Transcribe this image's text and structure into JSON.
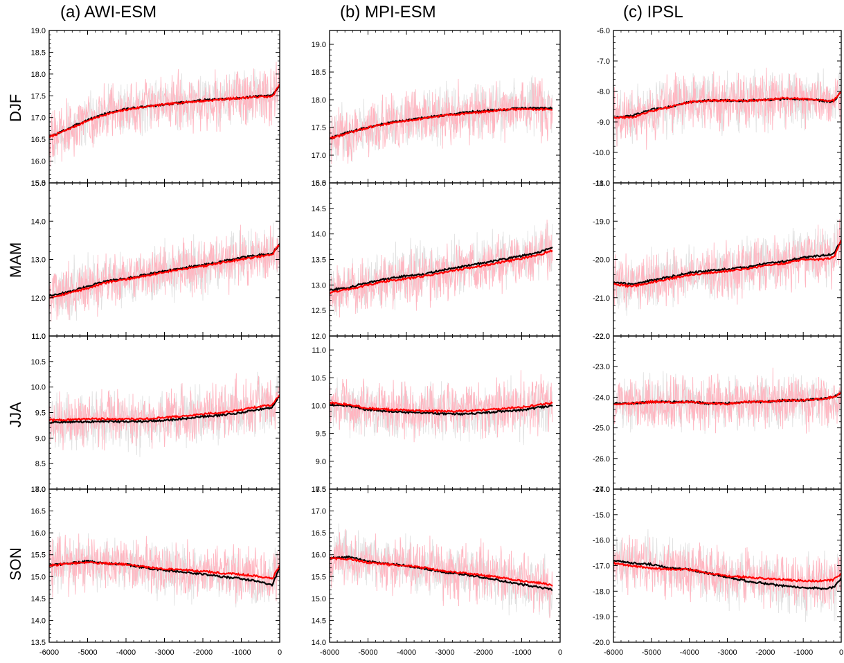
{
  "figure": {
    "panel_titles": [
      "(a) AWI-ESM",
      "(b) MPI-ESM",
      "(c) IPSL"
    ],
    "row_labels": [
      "DJF",
      "MAM",
      "JJA",
      "SON"
    ],
    "x_tick_labels": [
      "-6000",
      "-5000",
      "-4000",
      "-3000",
      "-2000",
      "-1000",
      "0"
    ],
    "colors": {
      "annual_noise_red": "#ffb6c1",
      "annual_noise_black": "#c8c8c8",
      "smoothed_red": "#ff0000",
      "smoothed_black": "#000000"
    }
  },
  "chart_data": [
    {
      "type": "line",
      "model": "AWI-ESM",
      "season": "DJF",
      "xlim": [
        -6000,
        0
      ],
      "ylim": [
        15.5,
        19.0
      ],
      "x_ticks": [
        -6000,
        -5000,
        -4000,
        -3000,
        -2000,
        -1000,
        0
      ],
      "y_ticks": [
        15.5,
        16.0,
        16.5,
        17.0,
        17.5,
        18.0,
        18.5,
        19.0
      ],
      "y_tick_labels": [
        "15.5",
        "16.0",
        "16.5",
        "17.0",
        "17.5",
        "18.0",
        "18.5",
        "19.0"
      ],
      "x": [
        -6000,
        -5500,
        -5000,
        -4500,
        -4000,
        -3500,
        -3000,
        -2500,
        -2000,
        -1500,
        -1000,
        -500,
        -200,
        0
      ],
      "series": [
        {
          "color": "black",
          "values": [
            16.55,
            16.75,
            16.95,
            17.1,
            17.2,
            17.25,
            17.3,
            17.35,
            17.4,
            17.42,
            17.45,
            17.5,
            17.5,
            17.75
          ]
        },
        {
          "color": "red",
          "values": [
            16.55,
            16.73,
            16.93,
            17.08,
            17.18,
            17.25,
            17.3,
            17.35,
            17.38,
            17.42,
            17.45,
            17.48,
            17.48,
            17.75
          ]
        }
      ]
    },
    {
      "type": "line",
      "model": "MPI-ESM",
      "season": "DJF",
      "xlim": [
        -6000,
        0
      ],
      "ylim": [
        16.5,
        19.25
      ],
      "x_ticks": [
        -6000,
        -5000,
        -4000,
        -3000,
        -2000,
        -1000,
        0
      ],
      "y_ticks": [
        16.5,
        17.0,
        17.5,
        18.0,
        18.5,
        19.0
      ],
      "y_tick_labels": [
        "16.5",
        "17.0",
        "17.5",
        "18.0",
        "18.5",
        "19.0"
      ],
      "x": [
        -6000,
        -5500,
        -5000,
        -4500,
        -4000,
        -3500,
        -3000,
        -2500,
        -2000,
        -1500,
        -1000,
        -500,
        -200
      ],
      "series": [
        {
          "color": "black",
          "values": [
            17.3,
            17.42,
            17.5,
            17.58,
            17.63,
            17.68,
            17.72,
            17.77,
            17.8,
            17.82,
            17.85,
            17.85,
            17.85
          ]
        },
        {
          "color": "red",
          "values": [
            17.3,
            17.4,
            17.5,
            17.57,
            17.62,
            17.67,
            17.72,
            17.75,
            17.78,
            17.82,
            17.83,
            17.83,
            17.82
          ]
        }
      ]
    },
    {
      "type": "line",
      "model": "IPSL",
      "season": "DJF",
      "xlim": [
        -6000,
        0
      ],
      "ylim": [
        -11.0,
        -6.0
      ],
      "x_ticks": [
        -6000,
        -5000,
        -4000,
        -3000,
        -2000,
        -1000,
        0
      ],
      "y_ticks": [
        -11.0,
        -10.0,
        -9.0,
        -8.0,
        -7.0,
        -6.0
      ],
      "y_tick_labels": [
        "-11.0",
        "-10.0",
        "-9.0",
        "-8.0",
        "-7.0",
        "-6.0"
      ],
      "x": [
        -6000,
        -5500,
        -5000,
        -4500,
        -4000,
        -3500,
        -3000,
        -2500,
        -2000,
        -1500,
        -1000,
        -500,
        -200,
        0
      ],
      "series": [
        {
          "color": "black",
          "values": [
            -8.85,
            -8.8,
            -8.6,
            -8.5,
            -8.35,
            -8.3,
            -8.3,
            -8.3,
            -8.28,
            -8.25,
            -8.25,
            -8.3,
            -8.35,
            -8.0
          ]
        },
        {
          "color": "red",
          "values": [
            -8.85,
            -8.85,
            -8.65,
            -8.5,
            -8.35,
            -8.3,
            -8.3,
            -8.3,
            -8.28,
            -8.22,
            -8.25,
            -8.3,
            -8.3,
            -8.0
          ]
        }
      ]
    },
    {
      "type": "line",
      "model": "AWI-ESM",
      "season": "MAM",
      "xlim": [
        -6000,
        0
      ],
      "ylim": [
        11.0,
        15.0
      ],
      "x_ticks": [
        -6000,
        -5000,
        -4000,
        -3000,
        -2000,
        -1000,
        0
      ],
      "y_ticks": [
        11.0,
        12.0,
        13.0,
        14.0,
        15.0
      ],
      "y_tick_labels": [
        "11.0",
        "12.0",
        "13.0",
        "14.0",
        "15.0"
      ],
      "x": [
        -6000,
        -5500,
        -5000,
        -4500,
        -4000,
        -3500,
        -3000,
        -2500,
        -2000,
        -1500,
        -1000,
        -500,
        -200,
        0
      ],
      "series": [
        {
          "color": "black",
          "values": [
            12.05,
            12.15,
            12.3,
            12.45,
            12.5,
            12.6,
            12.7,
            12.78,
            12.85,
            12.95,
            13.05,
            13.12,
            13.15,
            13.4
          ]
        },
        {
          "color": "red",
          "values": [
            12.0,
            12.12,
            12.25,
            12.4,
            12.48,
            12.57,
            12.67,
            12.75,
            12.82,
            12.92,
            13.0,
            13.08,
            13.12,
            13.4
          ]
        }
      ]
    },
    {
      "type": "line",
      "model": "MPI-ESM",
      "season": "MAM",
      "xlim": [
        -6000,
        0
      ],
      "ylim": [
        12.0,
        15.0
      ],
      "x_ticks": [
        -6000,
        -5000,
        -4000,
        -3000,
        -2000,
        -1000,
        0
      ],
      "y_ticks": [
        12.0,
        12.5,
        13.0,
        13.5,
        14.0,
        14.5,
        15.0
      ],
      "y_tick_labels": [
        "12.0",
        "12.5",
        "13.0",
        "13.5",
        "14.0",
        "14.5",
        "15.0"
      ],
      "x": [
        -6000,
        -5500,
        -5000,
        -4500,
        -4000,
        -3500,
        -3000,
        -2500,
        -2000,
        -1500,
        -1000,
        -500,
        -200
      ],
      "series": [
        {
          "color": "black",
          "values": [
            12.9,
            12.95,
            13.05,
            13.12,
            13.18,
            13.22,
            13.3,
            13.37,
            13.43,
            13.5,
            13.57,
            13.65,
            13.75
          ]
        },
        {
          "color": "red",
          "values": [
            12.85,
            12.92,
            13.0,
            13.08,
            13.12,
            13.18,
            13.25,
            13.32,
            13.38,
            13.45,
            13.52,
            13.6,
            13.68
          ]
        }
      ]
    },
    {
      "type": "line",
      "model": "IPSL",
      "season": "MAM",
      "xlim": [
        -6000,
        0
      ],
      "ylim": [
        -22.0,
        -18.0
      ],
      "x_ticks": [
        -6000,
        -5000,
        -4000,
        -3000,
        -2000,
        -1000,
        0
      ],
      "y_ticks": [
        -22.0,
        -21.0,
        -20.0,
        -19.0,
        -18.0
      ],
      "y_tick_labels": [
        "-22.0",
        "-21.0",
        "-20.0",
        "-19.0",
        "-18.0"
      ],
      "x": [
        -6000,
        -5500,
        -5000,
        -4500,
        -4000,
        -3500,
        -3000,
        -2500,
        -2000,
        -1500,
        -1000,
        -500,
        -200,
        0
      ],
      "series": [
        {
          "color": "black",
          "values": [
            -20.6,
            -20.65,
            -20.55,
            -20.45,
            -20.35,
            -20.3,
            -20.25,
            -20.2,
            -20.1,
            -20.05,
            -19.95,
            -19.9,
            -19.85,
            -19.5
          ]
        },
        {
          "color": "red",
          "values": [
            -20.65,
            -20.7,
            -20.6,
            -20.5,
            -20.4,
            -20.35,
            -20.3,
            -20.25,
            -20.15,
            -20.1,
            -20.0,
            -20.0,
            -19.95,
            -19.5
          ]
        }
      ]
    },
    {
      "type": "line",
      "model": "AWI-ESM",
      "season": "JJA",
      "xlim": [
        -6000,
        0
      ],
      "ylim": [
        8.0,
        11.0
      ],
      "x_ticks": [
        -6000,
        -5000,
        -4000,
        -3000,
        -2000,
        -1000,
        0
      ],
      "y_ticks": [
        8.0,
        8.5,
        9.0,
        9.5,
        10.0,
        10.5,
        11.0
      ],
      "y_tick_labels": [
        "8.0",
        "8.5",
        "9.0",
        "9.5",
        "10.0",
        "10.5",
        "11.0"
      ],
      "x": [
        -6000,
        -5500,
        -5000,
        -4500,
        -4000,
        -3500,
        -3000,
        -2500,
        -2000,
        -1500,
        -1000,
        -500,
        -200,
        0
      ],
      "series": [
        {
          "color": "black",
          "values": [
            9.3,
            9.32,
            9.32,
            9.33,
            9.32,
            9.33,
            9.35,
            9.38,
            9.42,
            9.45,
            9.5,
            9.57,
            9.6,
            9.85
          ]
        },
        {
          "color": "red",
          "values": [
            9.35,
            9.36,
            9.37,
            9.38,
            9.37,
            9.38,
            9.4,
            9.43,
            9.47,
            9.5,
            9.55,
            9.62,
            9.65,
            9.85
          ]
        }
      ]
    },
    {
      "type": "line",
      "model": "MPI-ESM",
      "season": "JJA",
      "xlim": [
        -6000,
        0
      ],
      "ylim": [
        8.5,
        11.25
      ],
      "x_ticks": [
        -6000,
        -5000,
        -4000,
        -3000,
        -2000,
        -1000,
        0
      ],
      "y_ticks": [
        8.5,
        9.0,
        9.5,
        10.0,
        10.5,
        11.0
      ],
      "y_tick_labels": [
        "8.5",
        "9.0",
        "9.5",
        "10.0",
        "10.5",
        "11.0"
      ],
      "x": [
        -6000,
        -5500,
        -5000,
        -4500,
        -4000,
        -3500,
        -3000,
        -2500,
        -2000,
        -1500,
        -1000,
        -500,
        -200
      ],
      "series": [
        {
          "color": "black",
          "values": [
            10.02,
            10.0,
            9.92,
            9.9,
            9.88,
            9.87,
            9.85,
            9.85,
            9.87,
            9.9,
            9.92,
            9.97,
            10.0
          ]
        },
        {
          "color": "red",
          "values": [
            10.05,
            10.02,
            9.95,
            9.93,
            9.92,
            9.9,
            9.9,
            9.9,
            9.92,
            9.95,
            9.97,
            10.02,
            10.05
          ]
        }
      ]
    },
    {
      "type": "line",
      "model": "IPSL",
      "season": "JJA",
      "xlim": [
        -6000,
        0
      ],
      "ylim": [
        -27.0,
        -22.0
      ],
      "x_ticks": [
        -6000,
        -5000,
        -4000,
        -3000,
        -2000,
        -1000,
        0
      ],
      "y_ticks": [
        -27.0,
        -26.0,
        -25.0,
        -24.0,
        -23.0,
        -22.0
      ],
      "y_tick_labels": [
        "-27.0",
        "-26.0",
        "-25.0",
        "-24.0",
        "-23.0",
        "-22.0"
      ],
      "x": [
        -6000,
        -5500,
        -5000,
        -4500,
        -4000,
        -3500,
        -3000,
        -2500,
        -2000,
        -1500,
        -1000,
        -500,
        -200,
        0
      ],
      "series": [
        {
          "color": "black",
          "values": [
            -24.2,
            -24.2,
            -24.15,
            -24.15,
            -24.15,
            -24.2,
            -24.2,
            -24.15,
            -24.15,
            -24.1,
            -24.1,
            -24.05,
            -24.0,
            -23.85
          ]
        },
        {
          "color": "red",
          "values": [
            -24.22,
            -24.2,
            -24.15,
            -24.17,
            -24.15,
            -24.2,
            -24.22,
            -24.15,
            -24.15,
            -24.1,
            -24.1,
            -24.05,
            -24.0,
            -23.85
          ]
        }
      ]
    },
    {
      "type": "line",
      "model": "AWI-ESM",
      "season": "SON",
      "xlim": [
        -6000,
        0
      ],
      "ylim": [
        13.5,
        17.0
      ],
      "x_ticks": [
        -6000,
        -5000,
        -4000,
        -3000,
        -2000,
        -1000,
        0
      ],
      "y_ticks": [
        13.5,
        14.0,
        14.5,
        15.0,
        15.5,
        16.0,
        16.5,
        17.0
      ],
      "y_tick_labels": [
        "13.5",
        "14.0",
        "14.5",
        "15.0",
        "15.5",
        "16.0",
        "16.5",
        "17.0"
      ],
      "x": [
        -6000,
        -5500,
        -5000,
        -4500,
        -4000,
        -3500,
        -3000,
        -2500,
        -2000,
        -1500,
        -1000,
        -500,
        -200,
        0
      ],
      "series": [
        {
          "color": "black",
          "values": [
            15.25,
            15.3,
            15.35,
            15.3,
            15.28,
            15.2,
            15.15,
            15.1,
            15.05,
            15.0,
            14.95,
            14.88,
            14.8,
            15.2
          ]
        },
        {
          "color": "red",
          "values": [
            15.25,
            15.3,
            15.32,
            15.3,
            15.28,
            15.22,
            15.17,
            15.15,
            15.12,
            15.08,
            15.05,
            15.0,
            14.95,
            15.25
          ]
        }
      ]
    },
    {
      "type": "line",
      "model": "MPI-ESM",
      "season": "SON",
      "xlim": [
        -6000,
        0
      ],
      "ylim": [
        14.0,
        17.5
      ],
      "x_ticks": [
        -6000,
        -5000,
        -4000,
        -3000,
        -2000,
        -1000,
        0
      ],
      "y_ticks": [
        14.0,
        14.5,
        15.0,
        15.5,
        16.0,
        16.5,
        17.0,
        17.5
      ],
      "y_tick_labels": [
        "14.0",
        "14.5",
        "15.0",
        "15.5",
        "16.0",
        "16.5",
        "17.0",
        "17.5"
      ],
      "x": [
        -6000,
        -5500,
        -5000,
        -4500,
        -4000,
        -3500,
        -3000,
        -2500,
        -2000,
        -1500,
        -1000,
        -500,
        -200
      ],
      "series": [
        {
          "color": "black",
          "values": [
            15.92,
            15.95,
            15.85,
            15.8,
            15.75,
            15.68,
            15.6,
            15.55,
            15.48,
            15.4,
            15.32,
            15.25,
            15.2
          ]
        },
        {
          "color": "red",
          "values": [
            15.92,
            15.9,
            15.82,
            15.78,
            15.75,
            15.7,
            15.62,
            15.58,
            15.53,
            15.47,
            15.4,
            15.35,
            15.3
          ]
        }
      ]
    },
    {
      "type": "line",
      "model": "IPSL",
      "season": "SON",
      "xlim": [
        -6000,
        0
      ],
      "ylim": [
        -20.0,
        -14.0
      ],
      "x_ticks": [
        -6000,
        -5000,
        -4000,
        -3000,
        -2000,
        -1000,
        0
      ],
      "y_ticks": [
        -20.0,
        -19.0,
        -18.0,
        -17.0,
        -16.0,
        -15.0,
        -14.0
      ],
      "y_tick_labels": [
        "-20.0",
        "-19.0",
        "-18.0",
        "-17.0",
        "-16.0",
        "-15.0",
        "-14.0"
      ],
      "x": [
        -6000,
        -5500,
        -5000,
        -4500,
        -4000,
        -3500,
        -3000,
        -2500,
        -2000,
        -1500,
        -1000,
        -500,
        -200,
        0
      ],
      "series": [
        {
          "color": "black",
          "values": [
            -16.8,
            -16.9,
            -16.95,
            -17.1,
            -17.15,
            -17.3,
            -17.45,
            -17.6,
            -17.7,
            -17.8,
            -17.85,
            -17.9,
            -17.85,
            -17.5
          ]
        },
        {
          "color": "red",
          "values": [
            -16.9,
            -17.0,
            -17.1,
            -17.15,
            -17.15,
            -17.3,
            -17.4,
            -17.45,
            -17.5,
            -17.55,
            -17.6,
            -17.6,
            -17.55,
            -17.3
          ]
        }
      ]
    }
  ]
}
